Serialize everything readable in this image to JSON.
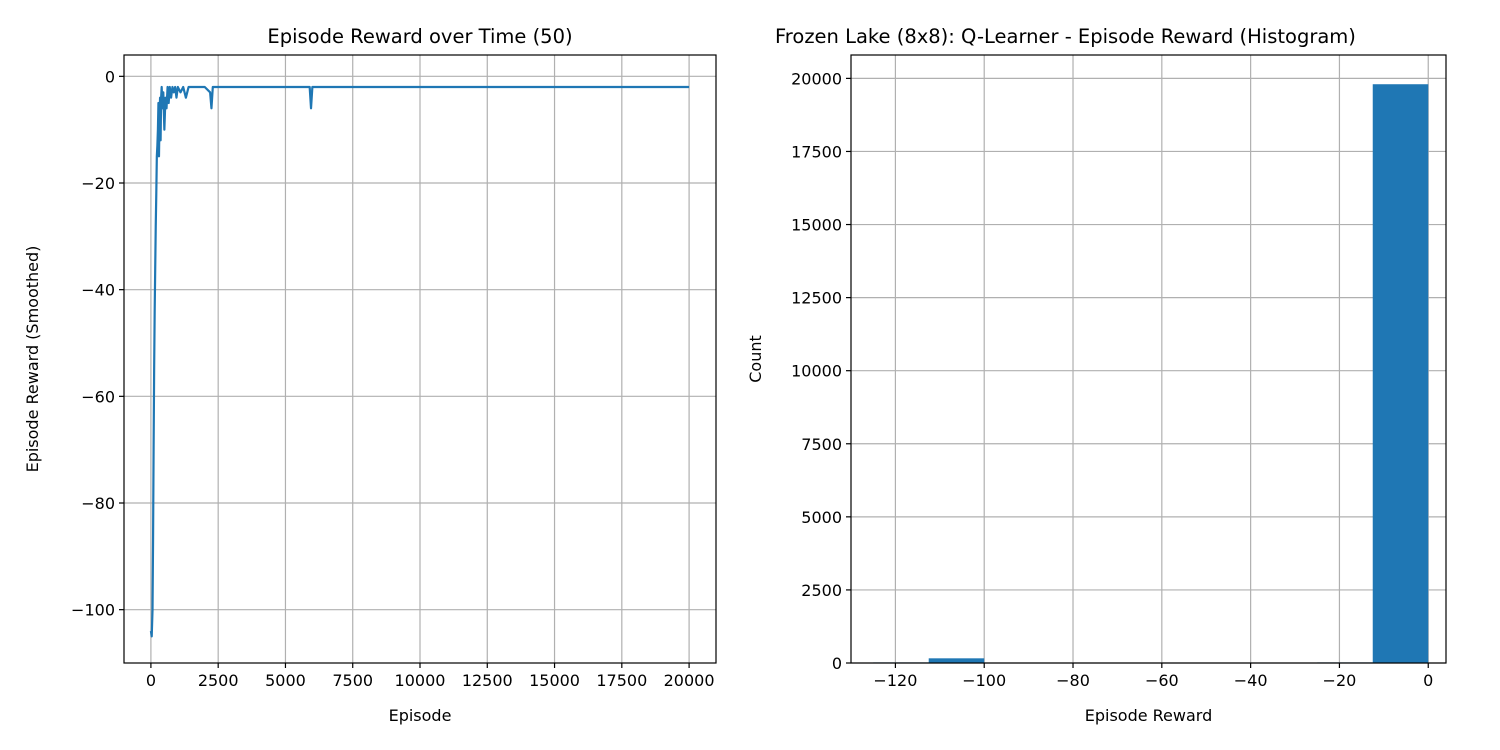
{
  "chart_data": [
    {
      "type": "line",
      "title": "Episode Reward over Time (50)",
      "xlabel": "Episode",
      "ylabel": "Episode Reward (Smoothed)",
      "xlim": [
        -1000,
        21000
      ],
      "ylim": [
        -110,
        4
      ],
      "xticks": [
        0,
        2500,
        5000,
        7500,
        10000,
        12500,
        15000,
        17500,
        20000
      ],
      "xtick_labels": [
        "0",
        "2500",
        "5000",
        "7500",
        "10000",
        "12500",
        "15000",
        "17500",
        "20000"
      ],
      "yticks": [
        -100,
        -80,
        -60,
        -40,
        -20,
        0
      ],
      "ytick_labels": [
        "−100",
        "−80",
        "−60",
        "−40",
        "−20",
        "0"
      ],
      "grid": true,
      "color": "#1f77b4",
      "series": [
        {
          "x": [
            0,
            30,
            60,
            80,
            100,
            120,
            140,
            160,
            180,
            200,
            220,
            240,
            260,
            280,
            300,
            320,
            340,
            360,
            380,
            400,
            430,
            460,
            500,
            540,
            580,
            620,
            660,
            700,
            750,
            800,
            850,
            900,
            950,
            1000,
            1100,
            1200,
            1300,
            1400,
            1600,
            1800,
            2000,
            2200,
            2250,
            2300,
            2400,
            2600,
            3000,
            3500,
            4000,
            4500,
            5000,
            5500,
            5900,
            5950,
            6000,
            6100,
            6500,
            7000,
            8000,
            9000,
            10000,
            11000,
            12000,
            13000,
            14000,
            15000,
            16000,
            17000,
            18000,
            19000,
            20000
          ],
          "y": [
            -104,
            -105,
            -100,
            -87,
            -70,
            -55,
            -44,
            -36,
            -28,
            -22,
            -15,
            -13,
            -10,
            -5,
            -15,
            -8,
            -4,
            -12,
            -4,
            -2,
            -6,
            -3,
            -10,
            -4,
            -6,
            -2,
            -5,
            -2,
            -4,
            -2,
            -3,
            -2,
            -4,
            -2,
            -3,
            -2,
            -4,
            -2,
            -2,
            -2,
            -2,
            -3,
            -6,
            -2,
            -2,
            -2,
            -2,
            -2,
            -2,
            -2,
            -2,
            -2,
            -2,
            -6,
            -2,
            -2,
            -2,
            -2,
            -2,
            -2,
            -2,
            -2,
            -2,
            -2,
            -2,
            -2,
            -2,
            -2,
            -2,
            -2,
            -2
          ]
        }
      ]
    },
    {
      "type": "bar",
      "title": "Frozen Lake (8x8): Q-Learner - Episode Reward (Histogram)",
      "xlabel": "Episode Reward",
      "ylabel": "Count",
      "xlim": [
        -130,
        4
      ],
      "ylim": [
        0,
        20800
      ],
      "xticks": [
        -120,
        -100,
        -80,
        -60,
        -40,
        -20,
        0
      ],
      "xtick_labels": [
        "−120",
        "−100",
        "−80",
        "−60",
        "−40",
        "−20",
        "0"
      ],
      "yticks": [
        0,
        2500,
        5000,
        7500,
        10000,
        12500,
        15000,
        17500,
        20000
      ],
      "ytick_labels": [
        "0",
        "2500",
        "5000",
        "7500",
        "10000",
        "12500",
        "15000",
        "17500",
        "20000"
      ],
      "grid": true,
      "color": "#1f77b4",
      "bins": [
        {
          "x0": -125,
          "x1": -112.5,
          "count": 20
        },
        {
          "x0": -112.5,
          "x1": -100,
          "count": 160
        },
        {
          "x0": -100,
          "x1": -87.5,
          "count": 0
        },
        {
          "x0": -87.5,
          "x1": -75,
          "count": 0
        },
        {
          "x0": -75,
          "x1": -62.5,
          "count": 0
        },
        {
          "x0": -62.5,
          "x1": -50,
          "count": 0
        },
        {
          "x0": -50,
          "x1": -37.5,
          "count": 0
        },
        {
          "x0": -37.5,
          "x1": -25,
          "count": 0
        },
        {
          "x0": -25,
          "x1": -12.5,
          "count": 20
        },
        {
          "x0": -12.5,
          "x1": 0,
          "count": 19800
        }
      ]
    }
  ]
}
